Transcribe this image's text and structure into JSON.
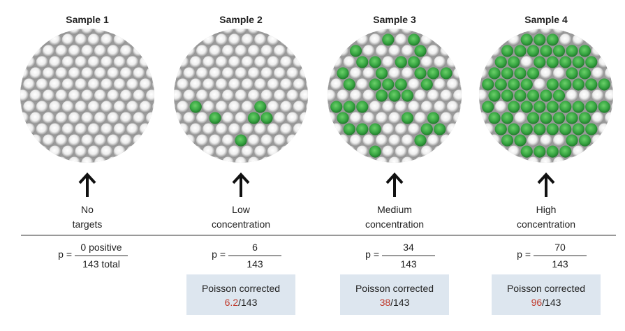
{
  "p_label": "p =",
  "samples": [
    {
      "title": "Sample 1",
      "label": [
        "No",
        "targets"
      ],
      "numerator": "0 positive",
      "denominator": "143 total"
    },
    {
      "title": "Sample 2",
      "label": [
        "Low",
        "concentration"
      ],
      "numerator": "6",
      "denominator": "143",
      "corrected": {
        "label": "Poisson corrected",
        "value": "6.2",
        "rest": "/143"
      }
    },
    {
      "title": "Sample 3",
      "label": [
        "Medium",
        "concentration"
      ],
      "numerator": "34",
      "denominator": "143",
      "corrected": {
        "label": "Poisson corrected",
        "value": "38",
        "rest": "/143"
      }
    },
    {
      "title": "Sample 4",
      "label": [
        "High",
        "concentration"
      ],
      "numerator": "70",
      "denominator": "143",
      "corrected": {
        "label": "Poisson corrected",
        "value": "96",
        "rest": "/143"
      }
    }
  ]
}
